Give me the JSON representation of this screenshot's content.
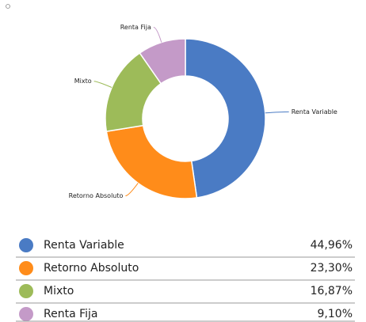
{
  "chart_data": {
    "type": "pie",
    "categories": [
      "Renta Variable",
      "Retorno Absoluto",
      "Mixto",
      "Renta Fija"
    ],
    "values": [
      44.96,
      23.3,
      16.87,
      9.1
    ],
    "value_labels": [
      "44,96%",
      "23,30%",
      "16,87%",
      "9,10%"
    ],
    "colors": [
      "#4a7bc4",
      "#ff8c1a",
      "#9dbb59",
      "#c49ac8"
    ]
  }
}
